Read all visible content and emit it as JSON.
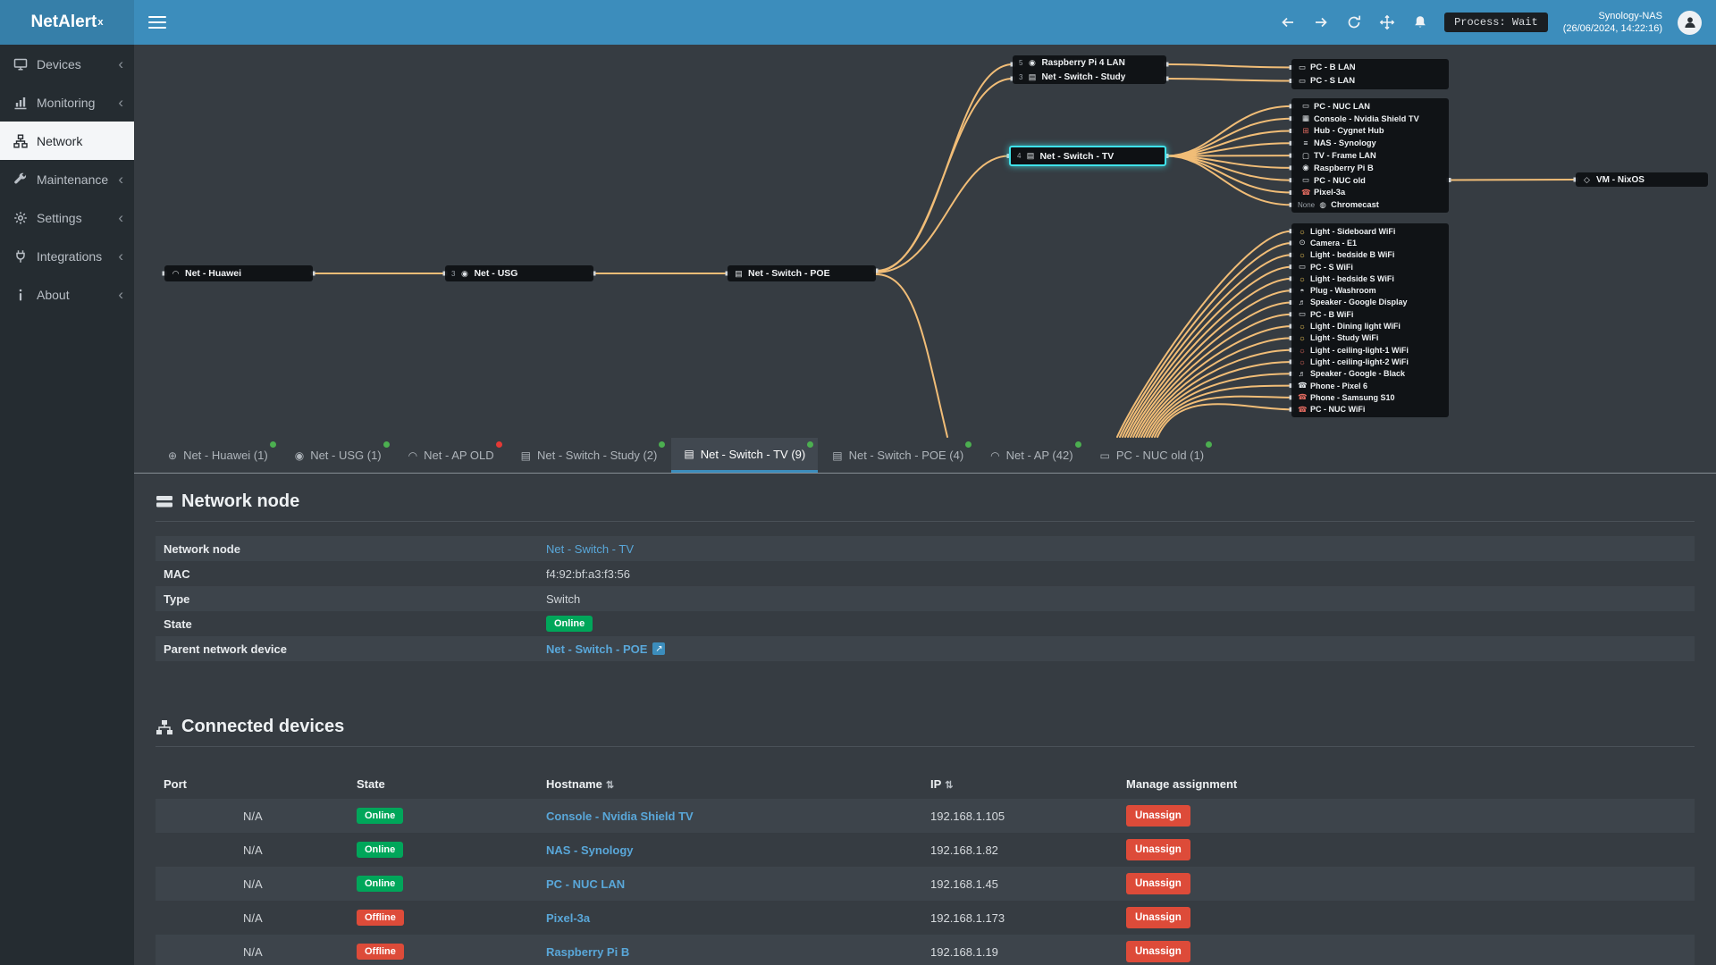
{
  "colors": {
    "accent": "#3c8dbc",
    "online": "#00a65a",
    "offline": "#dd4b39",
    "curve": "#f1bd77",
    "highlight": "#3fe2ea",
    "dot_green": "#4caf50",
    "dot_red": "#e53935"
  },
  "header": {
    "logo_text": "NetAlert",
    "logo_sup": "x",
    "process_badge": "Process: Wait",
    "server_name": "Synology-NAS",
    "server_time": "(26/06/2024, 14:22:16)"
  },
  "sidebar": {
    "items": [
      {
        "label": "Devices",
        "icon": "devices-icon",
        "chevron": "‹"
      },
      {
        "label": "Monitoring",
        "icon": "monitoring-icon",
        "chevron": "‹"
      },
      {
        "label": "Network",
        "icon": "network-icon",
        "chevron": ""
      },
      {
        "label": "Maintenance",
        "icon": "maintenance-icon",
        "chevron": "‹"
      },
      {
        "label": "Settings",
        "icon": "settings-icon",
        "chevron": "‹"
      },
      {
        "label": "Integrations",
        "icon": "integrations-icon",
        "chevron": "‹"
      },
      {
        "label": "About",
        "icon": "about-icon",
        "chevron": "‹"
      }
    ]
  },
  "topology": {
    "node_huawei": {
      "label": "Net - Huawei",
      "icon": "wifi-icon",
      "icon_glyph": "◠"
    },
    "node_usg": {
      "port": "3",
      "label": "Net - USG",
      "icon": "shield-icon",
      "icon_glyph": "◉"
    },
    "node_poe": {
      "label": "Net - Switch - POE",
      "icon": "switch-icon",
      "icon_glyph": "▤"
    },
    "node_tv": {
      "port": "4",
      "label": "Net - Switch - TV",
      "icon": "switch-icon",
      "icon_glyph": "▤"
    },
    "node_vm": {
      "label": "VM - NixOS",
      "icon": "vm-icon",
      "icon_glyph": "◇"
    },
    "top_group": [
      {
        "port": "5",
        "label": "Raspberry Pi 4 LAN",
        "icon": "raspberry-icon",
        "icon_glyph": "◉",
        "icon_color": "#e3e7ea"
      },
      {
        "port": "3",
        "label": "Net - Switch - Study",
        "icon": "switch-icon",
        "icon_glyph": "▤",
        "icon_color": "#e3e7ea"
      }
    ],
    "lan_group_a": [
      {
        "label": "PC - B LAN",
        "icon": "pc-icon",
        "icon_glyph": "▭",
        "icon_color": "#e3e7ea"
      },
      {
        "label": "PC - S LAN",
        "icon": "pc-icon",
        "icon_glyph": "▭",
        "icon_color": "#e3e7ea"
      }
    ],
    "lan_group_b": [
      {
        "label": "PC - NUC LAN",
        "icon": "pc-icon",
        "icon_glyph": "▭",
        "icon_color": "#e3e7ea"
      },
      {
        "label": "Console - Nvidia Shield TV",
        "icon": "console-icon",
        "icon_glyph": "▦",
        "icon_color": "#e3e7ea"
      },
      {
        "label": "Hub - Cygnet Hub",
        "icon": "hub-icon",
        "icon_glyph": "⊞",
        "icon_color": "#e06a5f"
      },
      {
        "label": "NAS - Synology",
        "icon": "nas-icon",
        "icon_glyph": "≡",
        "icon_color": "#e3e7ea"
      },
      {
        "label": "TV - Frame LAN",
        "icon": "tv-icon",
        "icon_glyph": "▢",
        "icon_color": "#e3e7ea"
      },
      {
        "label": "Raspberry Pi B",
        "icon": "raspberry-icon",
        "icon_glyph": "◉",
        "icon_color": "#e3e7ea"
      },
      {
        "label": "PC - NUC old",
        "icon": "pc-icon",
        "icon_glyph": "▭",
        "icon_color": "#e3e7ea"
      },
      {
        "label": "Pixel-3a",
        "icon": "phone-icon",
        "icon_glyph": "☎",
        "icon_color": "#e06a5f"
      },
      {
        "port": "None",
        "label": "Chromecast",
        "icon": "chromecast-icon",
        "icon_glyph": "◍",
        "icon_color": "#e3e7ea"
      }
    ],
    "wifi_group": [
      {
        "label": "Light - Sideboard WiFi",
        "icon": "lightbulb-icon",
        "icon_glyph": "☼",
        "icon_color": "#f0c75a"
      },
      {
        "label": "Camera - E1",
        "icon": "camera-icon",
        "icon_glyph": "⊙",
        "icon_color": "#e3e7ea"
      },
      {
        "label": "Light - bedside B WiFi",
        "icon": "lightbulb-icon",
        "icon_glyph": "☼",
        "icon_color": "#f0c75a"
      },
      {
        "label": "PC - S WiFi",
        "icon": "pc-icon",
        "icon_glyph": "▭",
        "icon_color": "#e3e7ea"
      },
      {
        "label": "Light - bedside S WiFi",
        "icon": "lightbulb-icon",
        "icon_glyph": "☼",
        "icon_color": "#f0c75a"
      },
      {
        "label": "Plug - Washroom",
        "icon": "plug-icon",
        "icon_glyph": "◓",
        "icon_color": "#e3e7ea"
      },
      {
        "label": "Speaker - Google Display",
        "icon": "speaker-icon",
        "icon_glyph": "♬",
        "icon_color": "#e3e7ea"
      },
      {
        "label": "PC - B WiFi",
        "icon": "pc-icon",
        "icon_glyph": "▭",
        "icon_color": "#e3e7ea"
      },
      {
        "label": "Light - Dining light WiFi",
        "icon": "lightbulb-icon",
        "icon_glyph": "☼",
        "icon_color": "#f0c75a"
      },
      {
        "label": "Light - Study WiFi",
        "icon": "lightbulb-icon",
        "icon_glyph": "☼",
        "icon_color": "#f0c75a"
      },
      {
        "label": "Light - ceiling-light-1 WiFi",
        "icon": "lightbulb-icon",
        "icon_glyph": "☼",
        "icon_color": "#e06a5f"
      },
      {
        "label": "Light - ceiling-light-2 WiFi",
        "icon": "lightbulb-icon",
        "icon_glyph": "☼",
        "icon_color": "#e06a5f"
      },
      {
        "label": "Speaker - Google - Black",
        "icon": "speaker-icon",
        "icon_glyph": "♬",
        "icon_color": "#e3e7ea"
      },
      {
        "label": "Phone - Pixel 6",
        "icon": "phone-icon",
        "icon_glyph": "☎",
        "icon_color": "#e3e7ea"
      },
      {
        "label": "Phone - Samsung S10",
        "icon": "phone-icon",
        "icon_glyph": "☎",
        "icon_color": "#e06a5f"
      },
      {
        "label": "PC - NUC WiFi",
        "icon": "phone-icon",
        "icon_glyph": "☎",
        "icon_color": "#e06a5f"
      }
    ]
  },
  "tabs": [
    {
      "label": "Net - Huawei (1)",
      "icon": "globe-icon",
      "glyph": "⊕",
      "dot_color": "#4caf50",
      "active_class": ""
    },
    {
      "label": "Net - USG (1)",
      "icon": "shield-icon",
      "glyph": "◉",
      "dot_color": "#4caf50",
      "active_class": ""
    },
    {
      "label": "Net - AP OLD",
      "icon": "wifi-icon",
      "glyph": "◠",
      "dot_color": "#e53935",
      "active_class": ""
    },
    {
      "label": "Net - Switch - Study (2)",
      "icon": "switch-icon",
      "glyph": "▤",
      "dot_color": "#4caf50",
      "active_class": ""
    },
    {
      "label": "Net - Switch - TV (9)",
      "icon": "switch-icon",
      "glyph": "▤",
      "dot_color": "#4caf50",
      "active_class": "active"
    },
    {
      "label": "Net - Switch - POE (4)",
      "icon": "switch-icon",
      "glyph": "▤",
      "dot_color": "#4caf50",
      "active_class": ""
    },
    {
      "label": "Net - AP (42)",
      "icon": "wifi-icon",
      "glyph": "◠",
      "dot_color": "#4caf50",
      "active_class": ""
    },
    {
      "label": "PC - NUC old (1)",
      "icon": "pc-icon",
      "glyph": "▭",
      "dot_color": "#4caf50",
      "active_class": ""
    }
  ],
  "network_node": {
    "title": "Network node",
    "node_label": "Network node",
    "node_value": "Net - Switch - TV",
    "mac_label": "MAC",
    "mac_value": "f4:92:bf:a3:f3:56",
    "type_label": "Type",
    "type_value": "Switch",
    "state_label": "State",
    "state_value": "Online",
    "parent_label": "Parent network device",
    "parent_value": "Net - Switch - POE",
    "external_link_glyph": "↗"
  },
  "connected_devices": {
    "title": "Connected devices",
    "headers": {
      "port": "Port",
      "state": "State",
      "hostname": "Hostname",
      "ip": "IP",
      "manage": "Manage assignment"
    },
    "sort_glyph": "⇅",
    "rows": [
      {
        "port": "N/A",
        "state": "Online",
        "state_class": "online",
        "hostname": "Console - Nvidia Shield TV",
        "ip": "192.168.1.105",
        "action": "Unassign"
      },
      {
        "port": "N/A",
        "state": "Online",
        "state_class": "online",
        "hostname": "NAS - Synology",
        "ip": "192.168.1.82",
        "action": "Unassign"
      },
      {
        "port": "N/A",
        "state": "Online",
        "state_class": "online",
        "hostname": "PC - NUC LAN",
        "ip": "192.168.1.45",
        "action": "Unassign"
      },
      {
        "port": "N/A",
        "state": "Offline",
        "state_class": "offline",
        "hostname": "Pixel-3a",
        "ip": "192.168.1.173",
        "action": "Unassign"
      },
      {
        "port": "N/A",
        "state": "Offline",
        "state_class": "offline",
        "hostname": "Raspberry Pi B",
        "ip": "192.168.1.19",
        "action": "Unassign"
      }
    ]
  }
}
